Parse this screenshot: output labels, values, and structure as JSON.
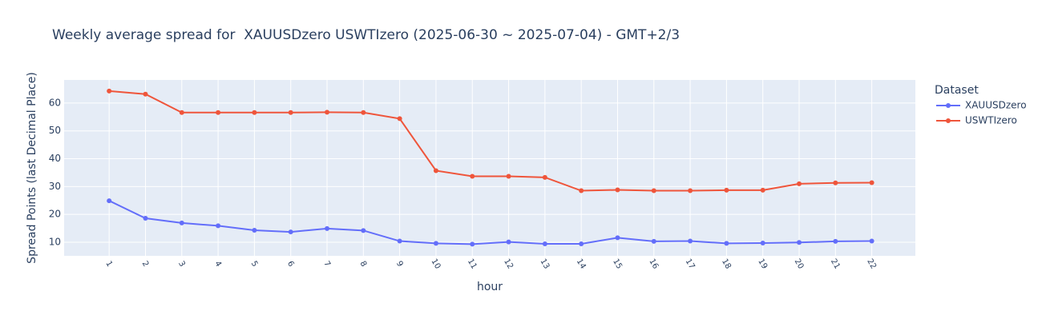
{
  "chart_data": {
    "type": "line",
    "title": "Weekly average spread for  XAUUSDzero USWTIzero (2025-06-30 ~ 2025-07-04) - GMT+2/3",
    "x_label": "hour",
    "y_label": "Spread Points (last Decimal Place)",
    "legend_title": "Dataset",
    "x": [
      1,
      2,
      3,
      4,
      5,
      6,
      7,
      8,
      9,
      10,
      11,
      12,
      13,
      14,
      15,
      16,
      17,
      18,
      19,
      20,
      21,
      22
    ],
    "series": [
      {
        "name": "XAUUSDzero",
        "color": "#636efa",
        "values": [
          24.9,
          18.6,
          16.9,
          15.9,
          14.3,
          13.7,
          14.9,
          14.2,
          10.4,
          9.6,
          9.3,
          10.1,
          9.4,
          9.4,
          11.6,
          10.3,
          10.4,
          9.6,
          9.7,
          9.9,
          10.3,
          10.4
        ]
      },
      {
        "name": "USWTIzero",
        "color": "#ef553b",
        "values": [
          64.3,
          63.2,
          56.6,
          56.6,
          56.6,
          56.6,
          56.7,
          56.6,
          54.4,
          35.7,
          33.7,
          33.7,
          33.3,
          28.5,
          28.8,
          28.5,
          28.5,
          28.7,
          28.7,
          31.0,
          31.3,
          31.4
        ]
      }
    ],
    "xlim": [
      -0.24,
      23.2
    ],
    "xticks": [
      1,
      2,
      3,
      4,
      5,
      6,
      7,
      8,
      9,
      10,
      11,
      12,
      13,
      14,
      15,
      16,
      17,
      18,
      19,
      20,
      21,
      22
    ],
    "ylim": [
      5.1,
      68.3
    ],
    "yticks": [
      10,
      20,
      30,
      40,
      50,
      60
    ],
    "grid": true,
    "legend": "right"
  }
}
